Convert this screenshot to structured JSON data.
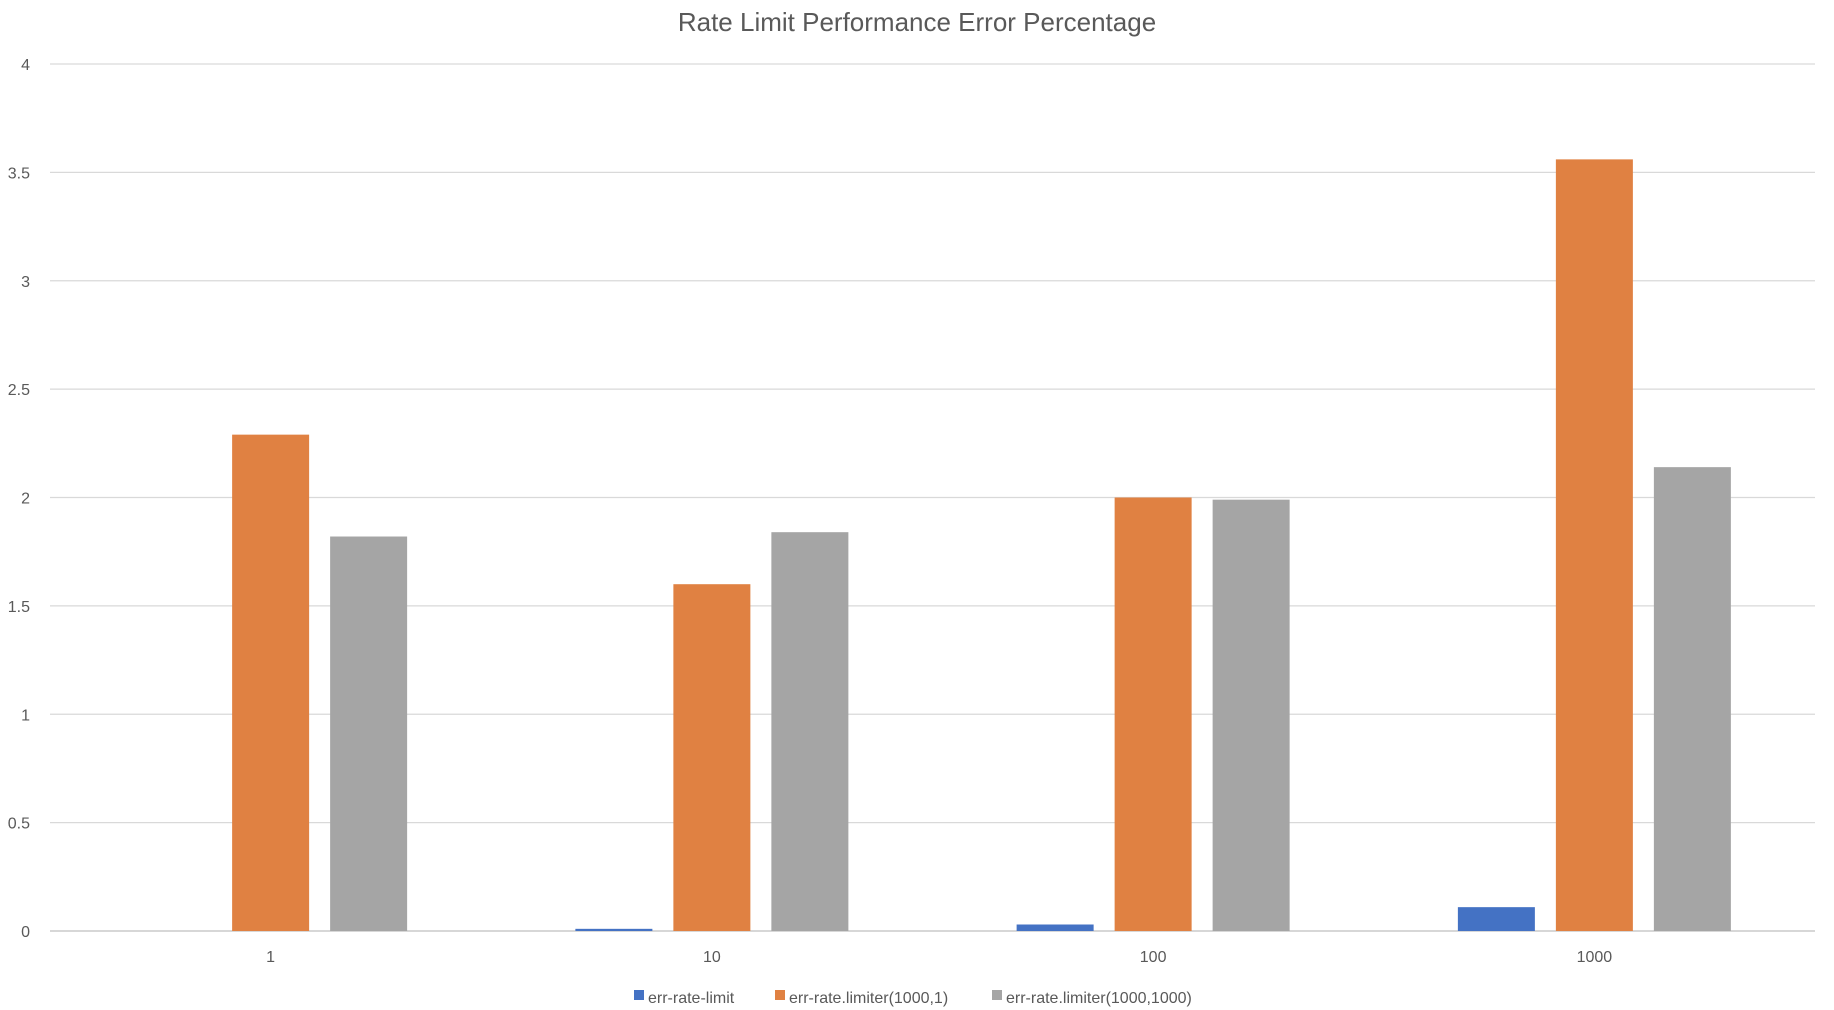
{
  "chart_data": {
    "type": "bar",
    "title": "Rate Limit Performance Error Percentage",
    "xlabel": "",
    "ylabel": "",
    "categories": [
      "1",
      "10",
      "100",
      "1000"
    ],
    "series": [
      {
        "name": "err-rate-limit",
        "values": [
          0,
          0.01,
          0.03,
          0.11
        ]
      },
      {
        "name": "err-rate.limiter(1000,1)",
        "values": [
          2.29,
          1.6,
          2.0,
          3.56
        ]
      },
      {
        "name": "err-rate.limiter(1000,1000)",
        "values": [
          1.82,
          1.84,
          1.99,
          2.14
        ]
      }
    ],
    "ylim": [
      0,
      4
    ],
    "yticks": [
      "0",
      "0.5",
      "1",
      "1.5",
      "2",
      "2.5",
      "3",
      "3.5",
      "4"
    ],
    "grid": true,
    "legend_position": "bottom",
    "colors": [
      "#4472c4",
      "#e08142",
      "#a5a5a5"
    ]
  }
}
